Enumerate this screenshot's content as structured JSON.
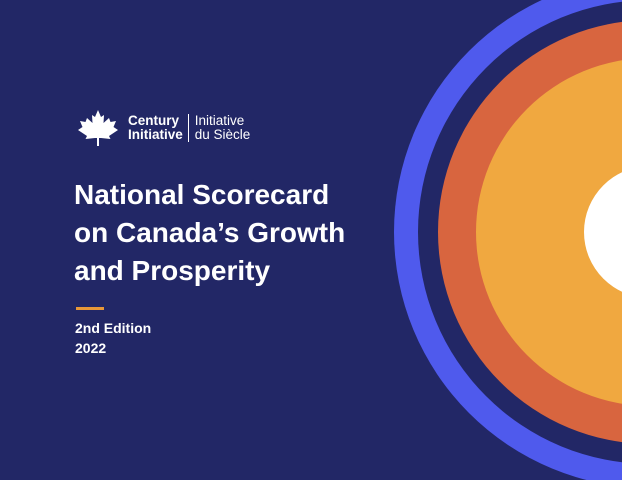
{
  "brand": {
    "en_line1": "Century",
    "en_line2": "Initiative",
    "fr_line1": "Initiative",
    "fr_line2": "du Siècle"
  },
  "title": {
    "line1": "National Scorecard",
    "line2": "on Canada’s Growth",
    "line3": "and Prosperity"
  },
  "edition": {
    "label": "2nd Edition",
    "year": "2022"
  },
  "colors": {
    "background": "#222766",
    "ring_outer": "#4f5aed",
    "ring_middle": "#d8653f",
    "ring_inner": "#f0a840",
    "accent_rule": "#e89838",
    "text": "#ffffff"
  },
  "icons": {
    "logo": "maple-leaf-icon"
  }
}
